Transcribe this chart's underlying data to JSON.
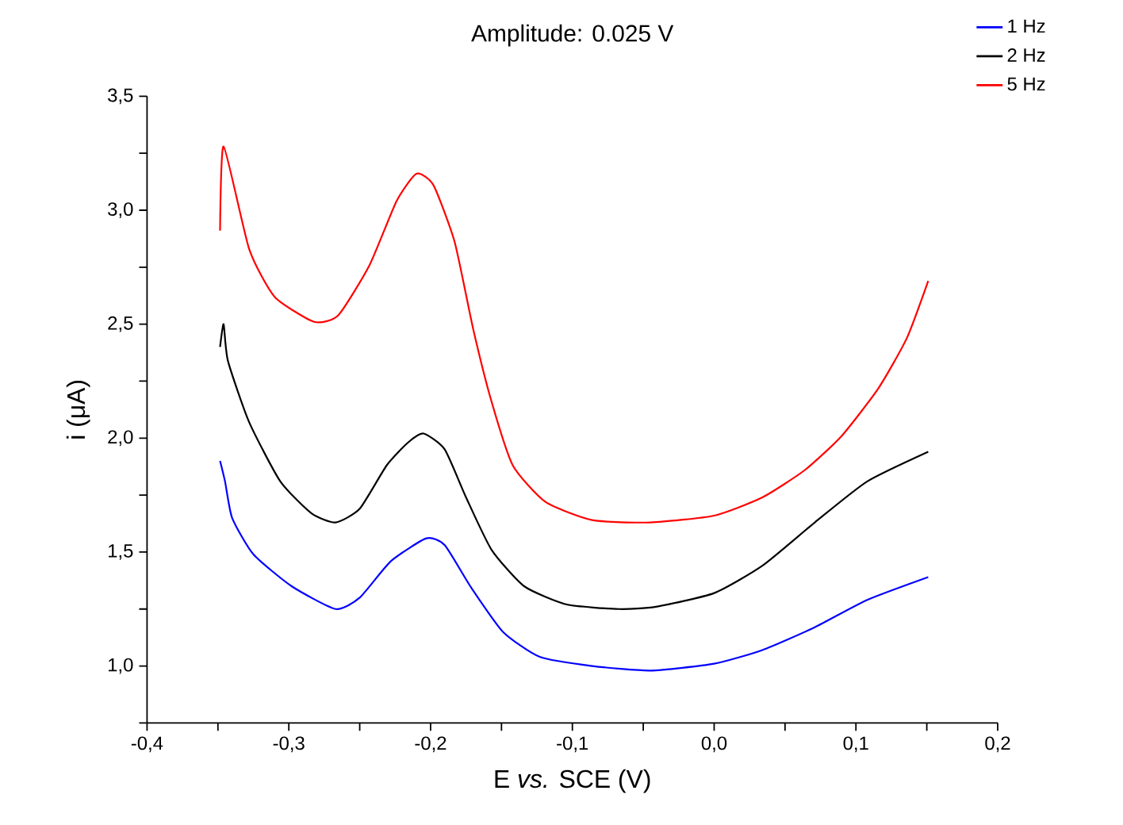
{
  "chart_data": {
    "type": "line",
    "title": "Amplitude: 0.025 V",
    "xlabel": "E *vs.* SCE (V)",
    "ylabel": "i (μA)",
    "xlim": [
      -0.4,
      0.2
    ],
    "xticks": [
      {
        "value": -0.4,
        "label": "-0,4"
      },
      {
        "value": -0.35,
        "label": null
      },
      {
        "value": -0.3,
        "label": "-0,3"
      },
      {
        "value": -0.25,
        "label": null
      },
      {
        "value": -0.2,
        "label": "-0,2"
      },
      {
        "value": -0.15,
        "label": null
      },
      {
        "value": -0.1,
        "label": "-0,1"
      },
      {
        "value": -0.05,
        "label": null
      },
      {
        "value": 0.0,
        "label": "0,0"
      },
      {
        "value": 0.05,
        "label": null
      },
      {
        "value": 0.1,
        "label": "0,1"
      },
      {
        "value": 0.15,
        "label": null
      },
      {
        "value": 0.2,
        "label": "0,2"
      }
    ],
    "ylim": [
      0.75,
      3.5
    ],
    "yticks": [
      {
        "value": 0.75,
        "label": null
      },
      {
        "value": 1.0,
        "label": "1,0"
      },
      {
        "value": 1.25,
        "label": null
      },
      {
        "value": 1.5,
        "label": "1,5"
      },
      {
        "value": 1.75,
        "label": null
      },
      {
        "value": 2.0,
        "label": "2,0"
      },
      {
        "value": 2.25,
        "label": null
      },
      {
        "value": 2.5,
        "label": "2,5"
      },
      {
        "value": 2.75,
        "label": null
      },
      {
        "value": 3.0,
        "label": "3,0"
      },
      {
        "value": 3.25,
        "label": null
      },
      {
        "value": 3.5,
        "label": "3,5"
      }
    ],
    "legend": "top right",
    "grid": false,
    "marker": "none",
    "line_style": "solid",
    "series": [
      {
        "name": "1 Hz",
        "color": "#0000ff",
        "x": [
          -0.3485,
          -0.345,
          -0.34,
          -0.325,
          -0.298,
          -0.267,
          -0.25,
          -0.228,
          -0.203,
          -0.19,
          -0.172,
          -0.149,
          -0.123,
          -0.086,
          -0.045,
          0.0,
          0.034,
          0.071,
          0.108,
          0.151
        ],
        "values": [
          1.9,
          1.81,
          1.65,
          1.49,
          1.35,
          1.25,
          1.3,
          1.46,
          1.56,
          1.53,
          1.35,
          1.15,
          1.04,
          1.0,
          0.98,
          1.01,
          1.07,
          1.17,
          1.29,
          1.39
        ]
      },
      {
        "name": "2 Hz",
        "color": "#000000",
        "x": [
          -0.3485,
          -0.346,
          -0.343,
          -0.328,
          -0.306,
          -0.284,
          -0.267,
          -0.25,
          -0.231,
          -0.216,
          -0.205,
          -0.19,
          -0.175,
          -0.157,
          -0.134,
          -0.104,
          -0.067,
          -0.041,
          0.0,
          0.034,
          0.071,
          0.108,
          0.151
        ],
        "values": [
          2.4,
          2.5,
          2.34,
          2.07,
          1.81,
          1.67,
          1.63,
          1.69,
          1.88,
          1.98,
          2.02,
          1.95,
          1.74,
          1.51,
          1.35,
          1.27,
          1.25,
          1.26,
          1.32,
          1.44,
          1.63,
          1.81,
          1.94
        ]
      },
      {
        "name": "5 Hz",
        "color": "#ff0000",
        "x": [
          -0.3485,
          -0.346,
          -0.328,
          -0.31,
          -0.282,
          -0.265,
          -0.243,
          -0.224,
          -0.21,
          -0.198,
          -0.183,
          -0.17,
          -0.157,
          -0.142,
          -0.119,
          -0.086,
          -0.045,
          0.0,
          0.034,
          0.064,
          0.09,
          0.116,
          0.136,
          0.151
        ],
        "values": [
          2.91,
          3.28,
          2.83,
          2.62,
          2.51,
          2.54,
          2.76,
          3.04,
          3.16,
          3.11,
          2.86,
          2.48,
          2.16,
          1.88,
          1.72,
          1.64,
          1.63,
          1.66,
          1.74,
          1.86,
          2.01,
          2.22,
          2.44,
          2.69
        ]
      }
    ]
  }
}
